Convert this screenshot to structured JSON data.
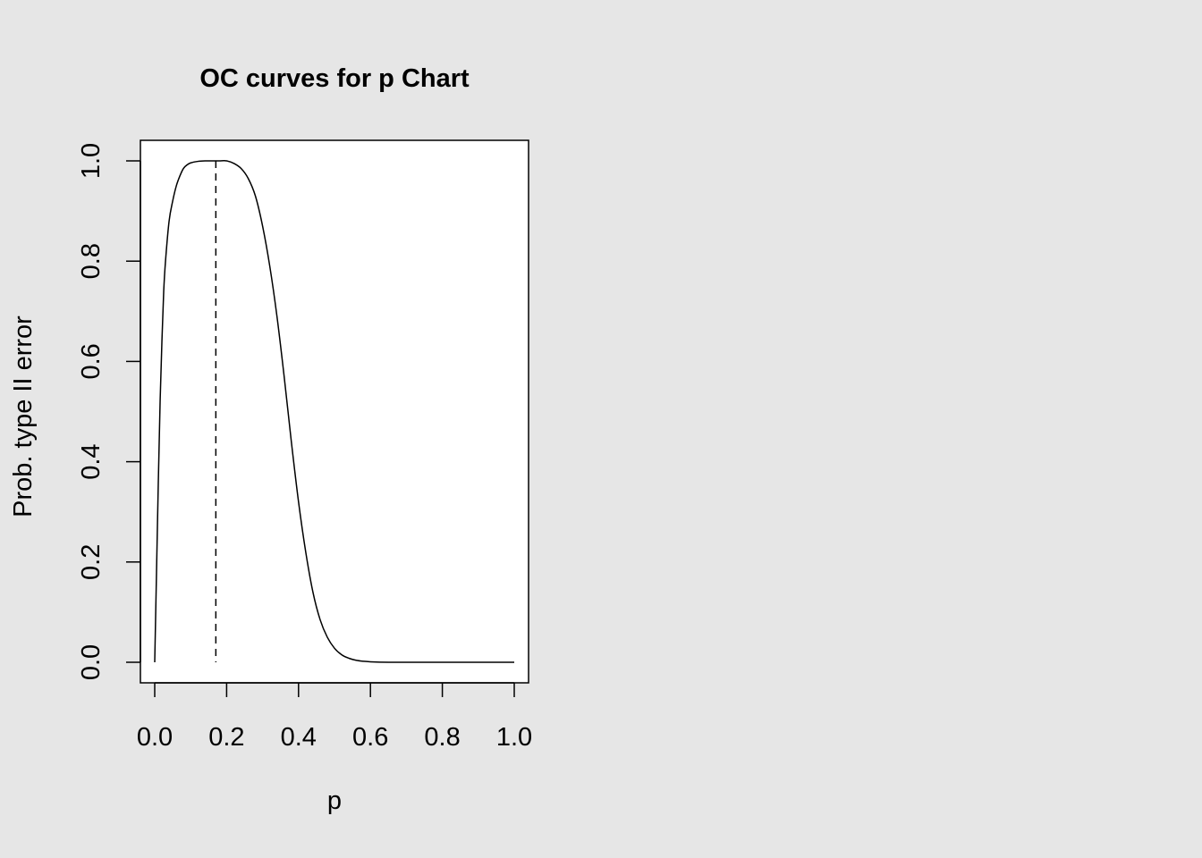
{
  "chart_data": {
    "type": "line",
    "title": "OC curves for p Chart",
    "xlabel": "p",
    "ylabel": "Prob. type II error",
    "xlim": [
      0,
      1
    ],
    "ylim": [
      0,
      1
    ],
    "x_ticks": [
      "0.0",
      "0.2",
      "0.4",
      "0.6",
      "0.8",
      "1.0"
    ],
    "y_ticks": [
      "0.0",
      "0.2",
      "0.4",
      "0.6",
      "0.8",
      "1.0"
    ],
    "grid": false,
    "legend": "none",
    "reference_line": {
      "x": 0.17,
      "style": "dashed"
    },
    "series": [
      {
        "x": [
          0.0,
          0.005,
          0.01,
          0.015,
          0.02,
          0.025,
          0.03,
          0.04,
          0.05,
          0.06,
          0.07,
          0.08,
          0.09,
          0.1,
          0.12,
          0.14,
          0.16,
          0.18,
          0.2,
          0.22,
          0.24,
          0.26,
          0.28,
          0.3,
          0.32,
          0.34,
          0.36,
          0.38,
          0.4,
          0.42,
          0.44,
          0.46,
          0.48,
          0.5,
          0.52,
          0.54,
          0.56,
          0.58,
          0.6,
          0.65,
          0.7,
          0.8,
          0.9,
          1.0
        ],
        "values": [
          0.0,
          0.18,
          0.36,
          0.52,
          0.64,
          0.74,
          0.8,
          0.88,
          0.92,
          0.95,
          0.97,
          0.985,
          0.992,
          0.996,
          0.999,
          1.0,
          1.0,
          1.0,
          1.0,
          0.995,
          0.985,
          0.965,
          0.93,
          0.87,
          0.79,
          0.69,
          0.57,
          0.44,
          0.32,
          0.22,
          0.14,
          0.085,
          0.05,
          0.028,
          0.015,
          0.008,
          0.004,
          0.002,
          0.001,
          0.0,
          0.0,
          0.0,
          0.0,
          0.0
        ]
      }
    ]
  }
}
